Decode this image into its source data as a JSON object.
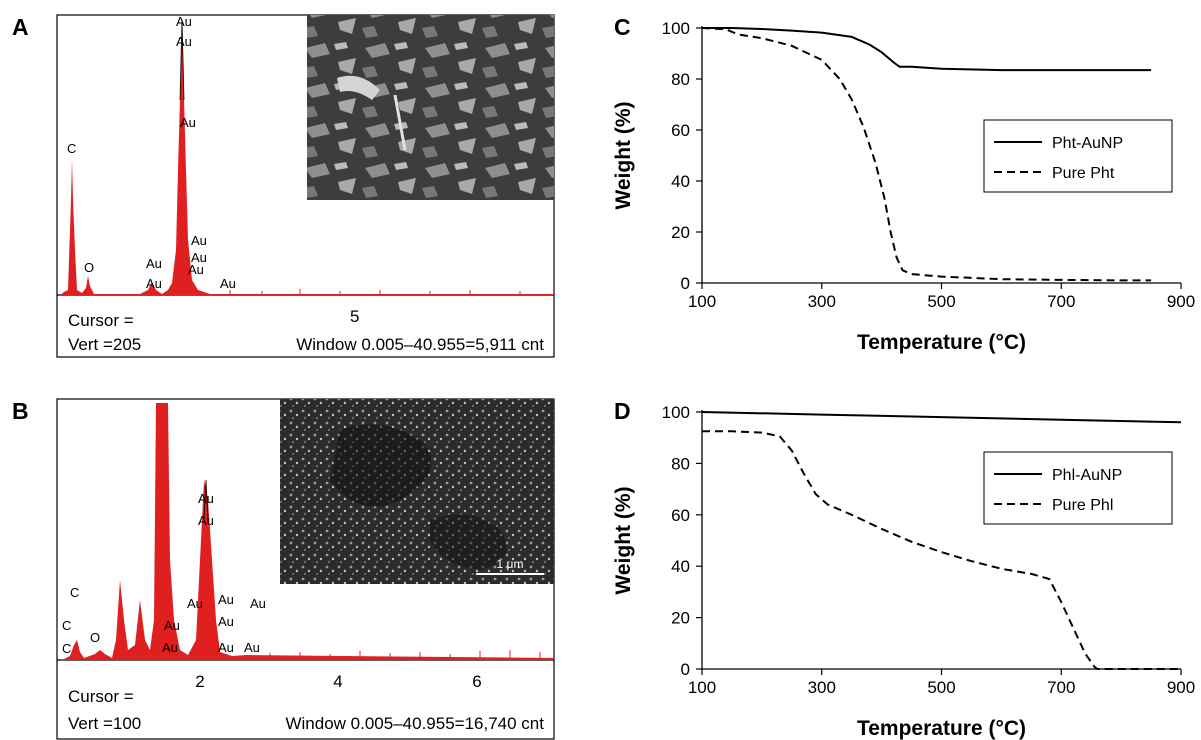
{
  "panels": {
    "a": "A",
    "b": "B",
    "c": "C",
    "d": "D"
  },
  "edx_a": {
    "peak_labels": [
      "Au",
      "Au",
      "Au",
      "C",
      "O",
      "Au",
      "Au",
      "Au",
      "Au",
      "Au",
      "Au"
    ],
    "cursor": "Cursor =",
    "vert": "Vert =205",
    "window": "Window 0.005–40.955=5,911 cnt",
    "x_tick": "5"
  },
  "edx_b": {
    "peak_labels": [
      "Au",
      "Au",
      "C",
      "Au",
      "Au",
      "Au",
      "C",
      "O",
      "Au",
      "Au",
      "C",
      "Au",
      "Au",
      "Au"
    ],
    "cursor": "Cursor =",
    "vert": "Vert =100",
    "window": "Window 0.005–40.955=16,740 cnt",
    "x_ticks": [
      "2",
      "4",
      "6"
    ],
    "scale_bar": "1 μm"
  },
  "chart_data": [
    {
      "type": "line",
      "panel": "C",
      "xlabel": "Temperature (°C)",
      "ylabel": "Weight (%)",
      "xlim": [
        100,
        900
      ],
      "ylim": [
        0,
        100
      ],
      "x_ticks": [
        100,
        300,
        500,
        700,
        900
      ],
      "y_ticks": [
        0,
        20,
        40,
        60,
        80,
        100
      ],
      "legend_position": "right",
      "series": [
        {
          "name": "Pht-AuNP",
          "style": "solid",
          "points": [
            [
              100,
              100
            ],
            [
              150,
              100
            ],
            [
              200,
              99.6
            ],
            [
              250,
              99
            ],
            [
              300,
              98.2
            ],
            [
              350,
              96.5
            ],
            [
              380,
              93.5
            ],
            [
              400,
              90.5
            ],
            [
              420,
              86.5
            ],
            [
              430,
              84.8
            ],
            [
              450,
              84.8
            ],
            [
              500,
              84
            ],
            [
              600,
              83.5
            ],
            [
              700,
              83.5
            ],
            [
              800,
              83.5
            ],
            [
              850,
              83.5
            ]
          ]
        },
        {
          "name": "Pure Pht",
          "style": "dashed",
          "points": [
            [
              100,
              100
            ],
            [
              140,
              99.5
            ],
            [
              160,
              97.5
            ],
            [
              200,
              96
            ],
            [
              250,
              93
            ],
            [
              300,
              87.5
            ],
            [
              330,
              80
            ],
            [
              350,
              72
            ],
            [
              370,
              61
            ],
            [
              390,
              47
            ],
            [
              405,
              33
            ],
            [
              415,
              20
            ],
            [
              425,
              10
            ],
            [
              435,
              5
            ],
            [
              450,
              3.5
            ],
            [
              500,
              2.5
            ],
            [
              600,
              1.5
            ],
            [
              700,
              1.2
            ],
            [
              800,
              1
            ],
            [
              850,
              1
            ]
          ]
        }
      ]
    },
    {
      "type": "line",
      "panel": "D",
      "xlabel": "Temperature (°C)",
      "ylabel": "Weight (%)",
      "xlim": [
        100,
        900
      ],
      "ylim": [
        0,
        100
      ],
      "x_ticks": [
        100,
        300,
        500,
        700,
        900
      ],
      "y_ticks": [
        0,
        20,
        40,
        60,
        80,
        100
      ],
      "legend_position": "right",
      "series": [
        {
          "name": "Phl-AuNP",
          "style": "solid",
          "points": [
            [
              100,
              100
            ],
            [
              300,
              99
            ],
            [
              500,
              98
            ],
            [
              700,
              97
            ],
            [
              900,
              96
            ]
          ]
        },
        {
          "name": "Pure Phl",
          "style": "dashed",
          "points": [
            [
              100,
              92.5
            ],
            [
              150,
              92.5
            ],
            [
              200,
              92
            ],
            [
              230,
              90.5
            ],
            [
              250,
              85
            ],
            [
              270,
              76
            ],
            [
              290,
              68
            ],
            [
              310,
              64
            ],
            [
              350,
              60
            ],
            [
              400,
              54.5
            ],
            [
              450,
              49.5
            ],
            [
              500,
              45.5
            ],
            [
              550,
              42
            ],
            [
              600,
              39
            ],
            [
              650,
              37
            ],
            [
              680,
              35
            ],
            [
              700,
              26
            ],
            [
              720,
              16
            ],
            [
              740,
              6
            ],
            [
              755,
              1
            ],
            [
              760,
              0
            ],
            [
              900,
              0
            ]
          ]
        }
      ]
    }
  ]
}
